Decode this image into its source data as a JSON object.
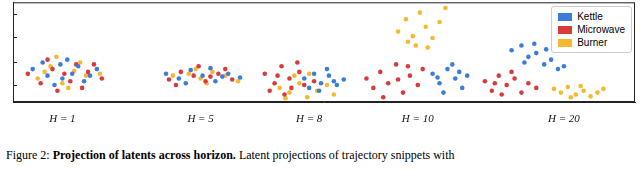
{
  "chart_data": {
    "type": "scatter",
    "xlim": [
      0,
      630
    ],
    "ylim": [
      0,
      106
    ],
    "yticks": [
      18,
      43,
      69,
      94
    ],
    "tick_labels": false,
    "grid": false,
    "legend": "top-right",
    "marker": "circle",
    "annotations": [
      {
        "text": "H = 1",
        "x": 50
      },
      {
        "text": "H = 5",
        "x": 190
      },
      {
        "text": "H = 8",
        "x": 300
      },
      {
        "text": "H = 10",
        "x": 410
      },
      {
        "text": "H = 20",
        "x": 558
      }
    ],
    "caption": {
      "label": "Figure 2:",
      "title": "Projection of latents across horizon.",
      "text": "Latent projections of trajectory snippets with"
    },
    "series": [
      {
        "name": "Kettle",
        "color": "#3b7ddd",
        "points": [
          [
            20,
            35
          ],
          [
            35,
            28
          ],
          [
            48,
            40
          ],
          [
            60,
            30
          ],
          [
            72,
            22
          ],
          [
            85,
            35
          ],
          [
            42,
            18
          ],
          [
            55,
            45
          ],
          [
            30,
            42
          ],
          [
            66,
            38
          ],
          [
            78,
            28
          ],
          [
            50,
            25
          ],
          [
            155,
            30
          ],
          [
            168,
            25
          ],
          [
            180,
            34
          ],
          [
            192,
            28
          ],
          [
            205,
            22
          ],
          [
            218,
            30
          ],
          [
            230,
            26
          ],
          [
            175,
            20
          ],
          [
            200,
            36
          ],
          [
            212,
            27
          ],
          [
            295,
            25
          ],
          [
            305,
            30
          ],
          [
            312,
            20
          ],
          [
            320,
            28
          ],
          [
            328,
            18
          ],
          [
            335,
            24
          ],
          [
            300,
            15
          ],
          [
            318,
            35
          ],
          [
            325,
            22
          ],
          [
            310,
            12
          ],
          [
            425,
            30
          ],
          [
            432,
            20
          ],
          [
            440,
            35
          ],
          [
            448,
            25
          ],
          [
            455,
            15
          ],
          [
            460,
            28
          ],
          [
            436,
            10
          ],
          [
            445,
            40
          ],
          [
            430,
            26
          ],
          [
            452,
            32
          ],
          [
            505,
            55
          ],
          [
            515,
            60
          ],
          [
            522,
            48
          ],
          [
            530,
            52
          ],
          [
            538,
            40
          ],
          [
            545,
            45
          ],
          [
            552,
            35
          ],
          [
            528,
            62
          ],
          [
            518,
            42
          ],
          [
            540,
            56
          ],
          [
            558,
            38
          ]
        ]
      },
      {
        "name": "Microwave",
        "color": "#d93b3b",
        "points": [
          [
            15,
            30
          ],
          [
            28,
            20
          ],
          [
            40,
            35
          ],
          [
            52,
            30
          ],
          [
            64,
            40
          ],
          [
            76,
            32
          ],
          [
            90,
            25
          ],
          [
            45,
            12
          ],
          [
            58,
            22
          ],
          [
            35,
            45
          ],
          [
            70,
            15
          ],
          [
            82,
            40
          ],
          [
            158,
            24
          ],
          [
            170,
            32
          ],
          [
            183,
            28
          ],
          [
            195,
            22
          ],
          [
            208,
            30
          ],
          [
            222,
            24
          ],
          [
            188,
            38
          ],
          [
            165,
            18
          ],
          [
            215,
            35
          ],
          [
            200,
            27
          ],
          [
            255,
            30
          ],
          [
            265,
            20
          ],
          [
            272,
            38
          ],
          [
            280,
            25
          ],
          [
            288,
            42
          ],
          [
            295,
            18
          ],
          [
            260,
            12
          ],
          [
            275,
            8
          ],
          [
            290,
            32
          ],
          [
            305,
            22
          ],
          [
            268,
            28
          ],
          [
            282,
            15
          ],
          [
            358,
            25
          ],
          [
            365,
            15
          ],
          [
            372,
            32
          ],
          [
            380,
            20
          ],
          [
            388,
            40
          ],
          [
            395,
            10
          ],
          [
            402,
            28
          ],
          [
            410,
            18
          ],
          [
            415,
            35
          ],
          [
            375,
            5
          ],
          [
            390,
            24
          ],
          [
            400,
            38
          ],
          [
            478,
            22
          ],
          [
            485,
            12
          ],
          [
            492,
            28
          ],
          [
            500,
            18
          ],
          [
            508,
            25
          ],
          [
            515,
            10
          ],
          [
            522,
            20
          ],
          [
            530,
            15
          ],
          [
            495,
            8
          ],
          [
            505,
            32
          ],
          [
            488,
            20
          ]
        ]
      },
      {
        "name": "Burner",
        "color": "#f5b82e",
        "points": [
          [
            25,
            25
          ],
          [
            38,
            38
          ],
          [
            50,
            20
          ],
          [
            62,
            33
          ],
          [
            74,
            28
          ],
          [
            88,
            30
          ],
          [
            44,
            48
          ],
          [
            56,
            15
          ],
          [
            68,
            42
          ],
          [
            32,
            32
          ],
          [
            162,
            28
          ],
          [
            178,
            30
          ],
          [
            190,
            25
          ],
          [
            202,
            32
          ],
          [
            215,
            28
          ],
          [
            228,
            22
          ],
          [
            185,
            35
          ],
          [
            196,
            20
          ],
          [
            270,
            15
          ],
          [
            280,
            10
          ],
          [
            290,
            20
          ],
          [
            298,
            5
          ],
          [
            308,
            12
          ],
          [
            318,
            18
          ],
          [
            325,
            8
          ],
          [
            285,
            28
          ],
          [
            300,
            30
          ],
          [
            276,
            4
          ],
          [
            390,
            75
          ],
          [
            398,
            88
          ],
          [
            405,
            70
          ],
          [
            412,
            95
          ],
          [
            418,
            80
          ],
          [
            425,
            68
          ],
          [
            432,
            85
          ],
          [
            438,
            100
          ],
          [
            408,
            60
          ],
          [
            420,
            58
          ],
          [
            400,
            64
          ],
          [
            548,
            14
          ],
          [
            555,
            10
          ],
          [
            562,
            16
          ],
          [
            570,
            8
          ],
          [
            578,
            12
          ],
          [
            585,
            6
          ],
          [
            592,
            10
          ],
          [
            598,
            14
          ],
          [
            575,
            17
          ],
          [
            565,
            5
          ]
        ]
      }
    ]
  }
}
